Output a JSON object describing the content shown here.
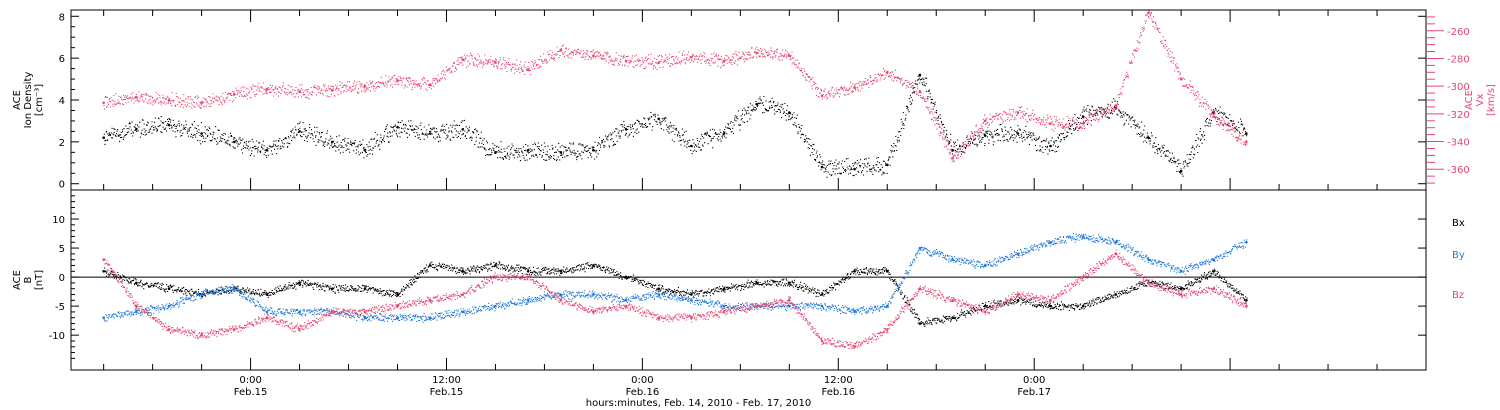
{
  "chart_data": [
    {
      "type": "scatter",
      "panel": "top",
      "ylabel_left": [
        "ACE",
        "Ion Density",
        "[cm⁻³]"
      ],
      "ylabel_right": [
        "ACE",
        "Vx",
        "[km/s]"
      ],
      "y_left": {
        "range": [
          -0.3,
          8.3
        ],
        "ticks": [
          0,
          2,
          4,
          6,
          8
        ],
        "tick_labels": [
          "0",
          "2",
          "4",
          "6",
          "8"
        ]
      },
      "y_right": {
        "range": [
          -375,
          -245
        ],
        "ticks": [
          -360,
          -340,
          -320,
          -300,
          -280,
          -260
        ],
        "tick_labels": [
          "-360",
          "-340",
          "-320",
          "-300",
          "-280",
          "-260"
        ]
      },
      "series": [
        {
          "color": "#000000",
          "axis": "left",
          "x": [
            -9,
            -7,
            -5,
            -3,
            -1,
            1,
            3,
            5,
            7,
            9,
            11,
            13,
            15,
            17,
            19,
            21,
            23,
            25,
            27,
            29,
            31,
            33,
            35,
            37,
            39,
            41,
            43,
            45,
            47,
            49,
            51,
            53,
            55,
            57,
            59,
            61
          ],
          "y": [
            2.2,
            2.6,
            2.8,
            2.4,
            2.0,
            1.6,
            2.5,
            2.0,
            1.6,
            2.7,
            2.4,
            2.6,
            1.5,
            1.6,
            1.5,
            1.6,
            2.6,
            3.1,
            1.8,
            2.4,
            3.8,
            3.4,
            0.8,
            0.7,
            0.9,
            5.2,
            1.6,
            2.3,
            2.4,
            1.8,
            3.2,
            3.6,
            2.2,
            0.6,
            3.4,
            2.4
          ]
        },
        {
          "color": "#e8456f",
          "axis": "right",
          "x": [
            -9,
            -7,
            -5,
            -3,
            -1,
            1,
            3,
            5,
            7,
            9,
            11,
            13,
            15,
            17,
            19,
            21,
            23,
            25,
            27,
            29,
            31,
            33,
            35,
            37,
            39,
            41,
            43,
            45,
            47,
            49,
            51,
            53,
            55,
            57,
            59,
            61
          ],
          "y": [
            -312,
            -308,
            -310,
            -312,
            -306,
            -302,
            -304,
            -303,
            -300,
            -296,
            -299,
            -281,
            -283,
            -288,
            -274,
            -278,
            -282,
            -283,
            -279,
            -282,
            -276,
            -278,
            -307,
            -301,
            -290,
            -304,
            -352,
            -325,
            -319,
            -327,
            -327,
            -314,
            -247,
            -295,
            -322,
            -340
          ]
        }
      ]
    },
    {
      "type": "scatter",
      "panel": "bottom",
      "ylabel_left": [
        "ACE",
        "B",
        "[nT]"
      ],
      "y": {
        "range": [
          -16,
          15
        ],
        "ticks": [
          -10,
          -5,
          0,
          5,
          10
        ],
        "tick_labels": [
          "-10",
          "-5",
          "0",
          "5",
          "10"
        ]
      },
      "zero_line": true,
      "legend": {
        "position": "right",
        "entries": [
          "Bx",
          "By",
          "Bz"
        ]
      },
      "series": [
        {
          "name": "Bx",
          "color": "#000000",
          "x": [
            -9,
            -7,
            -5,
            -3,
            -1,
            1,
            3,
            5,
            7,
            9,
            11,
            13,
            15,
            17,
            19,
            21,
            23,
            25,
            27,
            29,
            31,
            33,
            35,
            37,
            39,
            41,
            43,
            45,
            47,
            49,
            51,
            53,
            55,
            57,
            59,
            61
          ],
          "y": [
            1,
            -1,
            -2,
            -3,
            -2,
            -3,
            -1,
            -2,
            -2,
            -3,
            2,
            1,
            2,
            1,
            1,
            2,
            0,
            -2,
            -3,
            -2,
            -1,
            -1,
            -3,
            1,
            1,
            -8,
            -7,
            -5,
            -4,
            -5,
            -5,
            -3,
            -1,
            -2,
            1,
            -4
          ]
        },
        {
          "name": "By",
          "color": "#1f78d8",
          "x": [
            -9,
            -7,
            -5,
            -3,
            -1,
            1,
            3,
            5,
            7,
            9,
            11,
            13,
            15,
            17,
            19,
            21,
            23,
            25,
            27,
            29,
            31,
            33,
            35,
            37,
            39,
            41,
            43,
            45,
            47,
            49,
            51,
            53,
            55,
            57,
            59,
            61
          ],
          "y": [
            -7,
            -6,
            -5,
            -3,
            -2,
            -6,
            -6,
            -6,
            -7,
            -7,
            -7,
            -6,
            -5,
            -4,
            -3,
            -3,
            -4,
            -3,
            -4,
            -5,
            -5,
            -5,
            -5,
            -6,
            -5,
            5,
            3,
            2,
            4,
            6,
            7,
            6,
            3,
            1,
            3,
            6
          ]
        },
        {
          "name": "Bz",
          "color": "#e8456f",
          "x": [
            -9,
            -7,
            -5,
            -3,
            -1,
            1,
            3,
            5,
            7,
            9,
            11,
            13,
            15,
            17,
            19,
            21,
            23,
            25,
            27,
            29,
            31,
            33,
            35,
            37,
            39,
            41,
            43,
            45,
            47,
            49,
            51,
            53,
            55,
            57,
            59,
            61
          ],
          "y": [
            3,
            -5,
            -9,
            -10,
            -9,
            -7,
            -9,
            -6,
            -6,
            -5,
            -4,
            -3,
            0,
            0,
            -4,
            -6,
            -5,
            -7,
            -7,
            -6,
            -5,
            -4,
            -11,
            -12,
            -9,
            -2,
            -4,
            -6,
            -3,
            -4,
            0,
            4,
            -1,
            -3,
            -2,
            -5
          ]
        }
      ]
    }
  ],
  "x_axis": {
    "range_hours": [
      -11,
      72
    ],
    "ticks": [
      {
        "h": 0,
        "time": "0:00",
        "day": "Feb.15"
      },
      {
        "h": 12,
        "time": "12:00",
        "day": "Feb.15"
      },
      {
        "h": 24,
        "time": "0:00",
        "day": "Feb.16"
      },
      {
        "h": 36,
        "time": "12:00",
        "day": "Feb.16"
      },
      {
        "h": 48,
        "time": "0:00",
        "day": "Feb.17"
      }
    ],
    "xlabel": "hours:minutes, Feb. 14, 2010 - Feb. 17, 2010"
  }
}
